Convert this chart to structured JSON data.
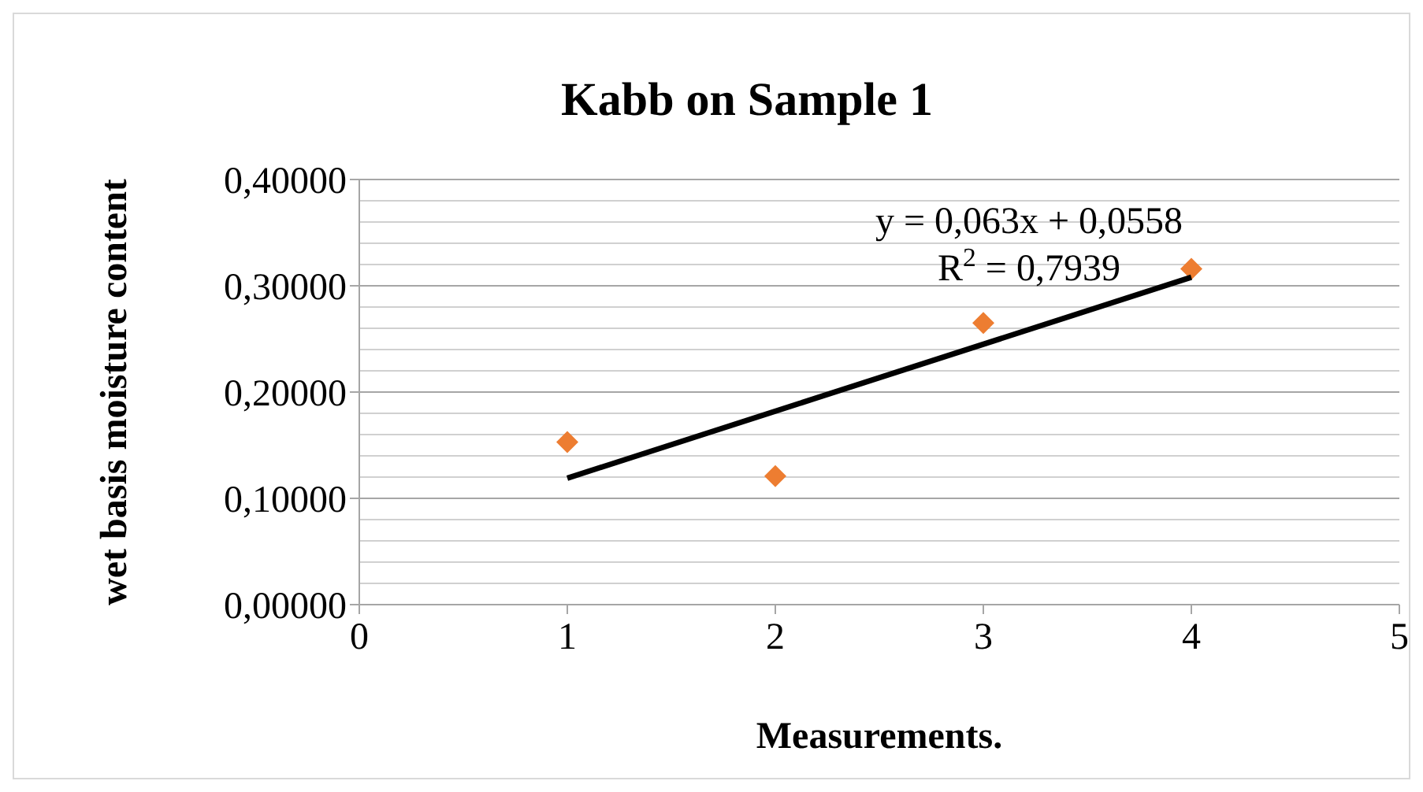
{
  "chart_data": {
    "type": "scatter",
    "title": "Kabb on Sample 1",
    "xlabel": "Measurements.",
    "ylabel": "wet basis moisture content",
    "series": [
      {
        "color": "#ed7d31",
        "x": [
          1,
          2,
          3,
          4
        ],
        "values": [
          0.153,
          0.121,
          0.265,
          0.316
        ],
        "marker": "diamond"
      },
      {
        "type": "line",
        "color": "#000000",
        "x": [
          1,
          4
        ],
        "values": [
          0.119,
          0.308
        ],
        "marker": "none"
      }
    ],
    "xlim": [
      0,
      5
    ],
    "xticks": [
      0,
      1,
      2,
      3,
      4,
      5
    ],
    "ylim": [
      0,
      0.4
    ],
    "yticks": [
      {
        "value": 0,
        "label": "0,00000"
      },
      {
        "value": 0.02,
        "label": null
      },
      {
        "value": 0.04,
        "label": null
      },
      {
        "value": 0.06,
        "label": null
      },
      {
        "value": 0.08,
        "label": null
      },
      {
        "value": 0.1,
        "label": "0,10000"
      },
      {
        "value": 0.12,
        "label": null
      },
      {
        "value": 0.14,
        "label": null
      },
      {
        "value": 0.16,
        "label": null
      },
      {
        "value": 0.18,
        "label": null
      },
      {
        "value": 0.2,
        "label": "0,20000"
      },
      {
        "value": 0.22,
        "label": null
      },
      {
        "value": 0.24,
        "label": null
      },
      {
        "value": 0.26,
        "label": null
      },
      {
        "value": 0.28,
        "label": null
      },
      {
        "value": 0.3,
        "label": "0,30000"
      },
      {
        "value": 0.32,
        "label": null
      },
      {
        "value": 0.34,
        "label": null
      },
      {
        "value": 0.36,
        "label": null
      },
      {
        "value": 0.38,
        "label": null
      },
      {
        "value": 0.4,
        "label": "0,40000"
      }
    ],
    "grid": "y",
    "annotations": [
      "y = 0,063x + 0,0558",
      "R$^{2}$ = 0,7939"
    ]
  }
}
